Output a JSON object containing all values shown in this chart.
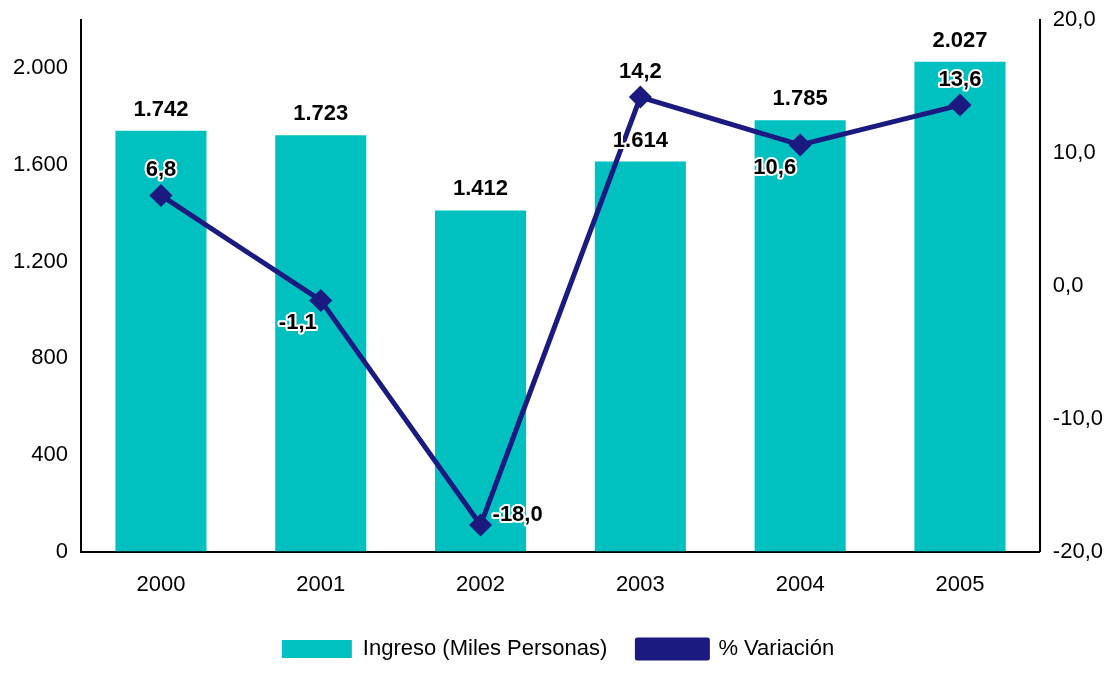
{
  "chart_data": {
    "type": "bar",
    "categories": [
      "2000",
      "2001",
      "2002",
      "2003",
      "2004",
      "2005"
    ],
    "series": [
      {
        "name": "Ingreso (Miles Personas)",
        "color": "#00c0c0",
        "values": [
          1742,
          1723,
          1412,
          1614,
          1785,
          2027
        ],
        "value_labels": [
          "1.742",
          "1.723",
          "1.412",
          "1.614",
          "1.785",
          "2.027"
        ]
      },
      {
        "name": "% Variación",
        "type": "line",
        "axis": "y2",
        "color": "#1a1a80",
        "marker": "diamond",
        "values": [
          6.8,
          -1.1,
          -18.0,
          14.2,
          10.6,
          13.6
        ],
        "value_labels": [
          "6,8",
          "-1,1",
          "-18,0",
          "14,2",
          "10,6",
          "13,6"
        ]
      }
    ],
    "ylim": [
      0,
      2200
    ],
    "yticks": [
      {
        "value": 0,
        "label": "0"
      },
      {
        "value": 400,
        "label": "400"
      },
      {
        "value": 800,
        "label": "800"
      },
      {
        "value": 1200,
        "label": "1.200"
      },
      {
        "value": 1600,
        "label": "1.600"
      },
      {
        "value": 2000,
        "label": "2.000"
      }
    ],
    "y2lim": [
      -20,
      20
    ],
    "y2ticks": [
      {
        "value": -20,
        "label": "-20,0"
      },
      {
        "value": -10,
        "label": "-10,0"
      },
      {
        "value": 0,
        "label": "0,0"
      },
      {
        "value": 10,
        "label": "10,0"
      },
      {
        "value": 20,
        "label": "20,0"
      }
    ],
    "grid": false,
    "legend": "bottom"
  }
}
